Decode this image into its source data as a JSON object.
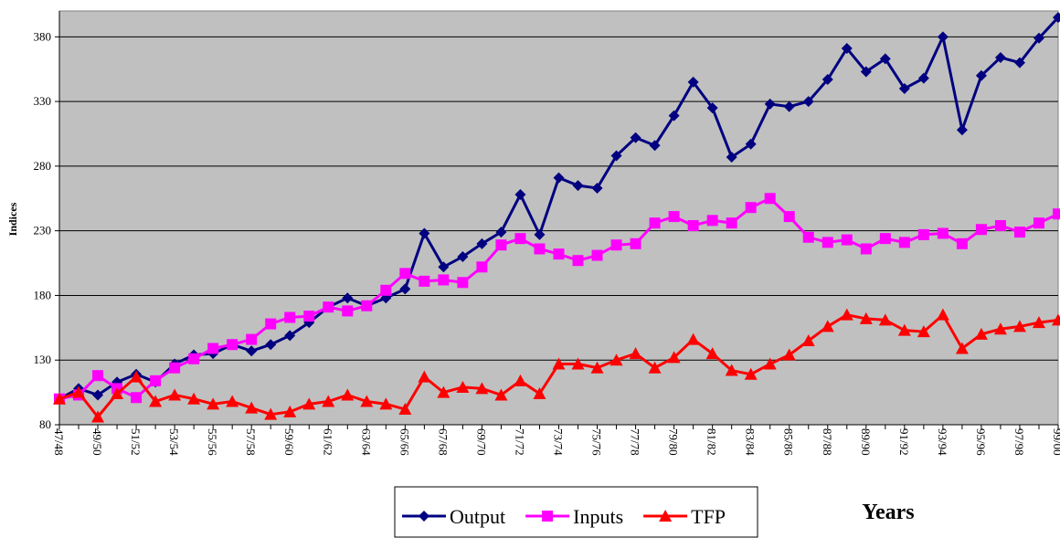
{
  "chart_data": {
    "type": "line",
    "y_label": "Indices",
    "x_label": "Years",
    "categories": [
      "47/48",
      null,
      "49/50",
      null,
      "51/52",
      null,
      "53/54",
      null,
      "55/56",
      null,
      "57/58",
      null,
      "59/60",
      null,
      "61/62",
      null,
      "63/64",
      null,
      "65/66",
      null,
      "67/68",
      null,
      "69/70",
      null,
      "71/72",
      null,
      "73/74",
      null,
      "75/76",
      null,
      "77/78",
      null,
      "79/80",
      null,
      "81/82",
      null,
      "83/84",
      null,
      "85/86",
      null,
      "87/88",
      null,
      "89/90",
      null,
      "91/92",
      null,
      "93/94",
      null,
      "95/96",
      null,
      "97/98",
      null,
      "99/00"
    ],
    "series": [
      {
        "name": "Output",
        "color": "#000080",
        "marker": "diamond",
        "values": [
          100,
          108,
          103,
          113,
          119,
          113,
          127,
          134,
          135,
          142,
          137,
          142,
          149,
          159,
          171,
          178,
          172,
          178,
          185,
          228,
          202,
          210,
          220,
          229,
          258,
          227,
          271,
          265,
          263,
          288,
          302,
          296,
          319,
          345,
          325,
          287,
          297,
          328,
          326,
          330,
          347,
          371,
          353,
          363,
          340,
          348,
          380,
          308,
          350,
          364,
          360,
          379,
          395
        ]
      },
      {
        "name": "Inputs",
        "color": "#ff00ff",
        "marker": "square",
        "values": [
          100,
          103,
          118,
          108,
          101,
          114,
          124,
          131,
          139,
          142,
          146,
          158,
          163,
          164,
          171,
          168,
          172,
          184,
          197,
          191,
          192,
          190,
          202,
          219,
          224,
          216,
          212,
          207,
          211,
          219,
          220,
          236,
          241,
          234,
          238,
          236,
          248,
          255,
          241,
          225,
          221,
          223,
          216,
          224,
          221,
          227,
          228,
          220,
          231,
          234,
          229,
          236,
          243
        ]
      },
      {
        "name": "TFP",
        "color": "#ff0000",
        "marker": "triangle",
        "values": [
          100,
          105,
          86,
          104,
          117,
          98,
          103,
          100,
          96,
          98,
          93,
          88,
          90,
          96,
          98,
          103,
          98,
          96,
          92,
          117,
          105,
          109,
          108,
          103,
          114,
          104,
          127,
          127,
          124,
          130,
          135,
          124,
          132,
          146,
          135,
          122,
          119,
          127,
          134,
          145,
          156,
          165,
          162,
          161,
          153,
          152,
          165,
          139,
          150,
          154,
          156,
          159,
          161
        ]
      }
    ],
    "ylim": [
      80,
      400
    ],
    "yticks": [
      80,
      130,
      180,
      230,
      280,
      330,
      380
    ],
    "grid": true,
    "plot_background": "#c0c0c0"
  }
}
